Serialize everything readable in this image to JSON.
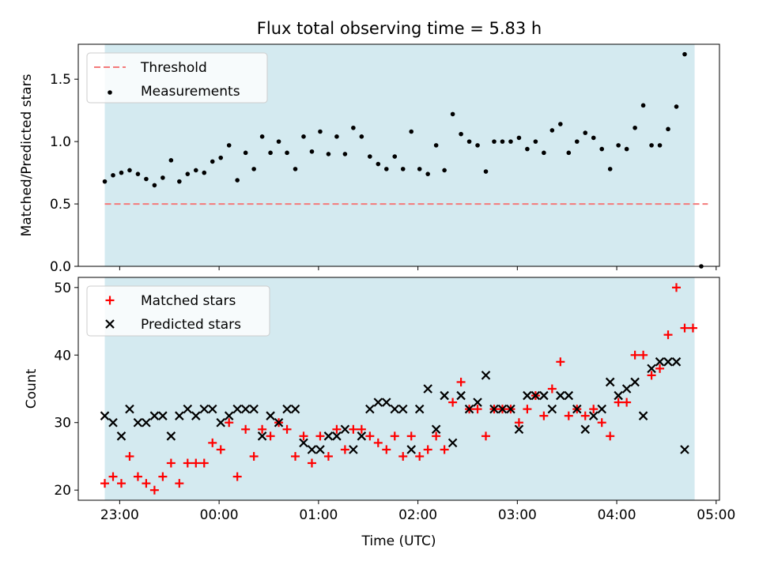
{
  "title": "Flux total observing time = 5.83 h",
  "colors": {
    "observing_band": "#d4eaf0",
    "threshold": "#f47a7a",
    "measurements": "#000000",
    "matched": "#ff0000",
    "predicted": "#000000"
  },
  "chart_data": [
    {
      "type": "scatter",
      "title": "Flux total observing time = 5.83 h",
      "xlabel": "",
      "ylabel": "Matched/Predicted stars",
      "xlim": [
        "22:35",
        "05:02"
      ],
      "ylim": [
        0,
        1.78
      ],
      "xticks": [
        "23:00",
        "00:00",
        "01:00",
        "02:00",
        "03:00",
        "04:00",
        "05:00"
      ],
      "yticks": [
        "0.0",
        "0.5",
        "1.0",
        "1.5"
      ],
      "legend_position": "upper-left",
      "observing_window": [
        "22:51",
        "04:47"
      ],
      "threshold": {
        "name": "Threshold",
        "y": 0.5,
        "x_range": [
          "22:51",
          "04:55"
        ]
      },
      "series": [
        {
          "name": "Measurements",
          "marker": "dot",
          "points": [
            [
              "22:51",
              0.68
            ],
            [
              "22:56",
              0.73
            ],
            [
              "22:61",
              0.75
            ],
            [
              "23:06",
              0.77
            ],
            [
              "23:11",
              0.74
            ],
            [
              "23:16",
              0.7
            ],
            [
              "23:21",
              0.65
            ],
            [
              "23:26",
              0.71
            ],
            [
              "23:31",
              0.85
            ],
            [
              "23:36",
              0.68
            ],
            [
              "23:41",
              0.74
            ],
            [
              "23:46",
              0.77
            ],
            [
              "23:51",
              0.75
            ],
            [
              "23:56",
              0.84
            ],
            [
              "00:01",
              0.87
            ],
            [
              "00:06",
              0.97
            ],
            [
              "00:11",
              0.69
            ],
            [
              "00:16",
              0.91
            ],
            [
              "00:21",
              0.78
            ],
            [
              "00:26",
              1.04
            ],
            [
              "00:31",
              0.91
            ],
            [
              "00:36",
              1.0
            ],
            [
              "00:41",
              0.91
            ],
            [
              "00:46",
              0.78
            ],
            [
              "00:51",
              1.04
            ],
            [
              "00:56",
              0.92
            ],
            [
              "01:01",
              1.08
            ],
            [
              "01:06",
              0.9
            ],
            [
              "01:11",
              1.04
            ],
            [
              "01:16",
              0.9
            ],
            [
              "01:21",
              1.11
            ],
            [
              "01:26",
              1.04
            ],
            [
              "01:31",
              0.88
            ],
            [
              "01:36",
              0.82
            ],
            [
              "01:41",
              0.78
            ],
            [
              "01:46",
              0.88
            ],
            [
              "01:51",
              0.78
            ],
            [
              "01:56",
              1.08
            ],
            [
              "02:01",
              0.78
            ],
            [
              "02:06",
              0.74
            ],
            [
              "02:11",
              0.97
            ],
            [
              "02:16",
              0.77
            ],
            [
              "02:21",
              1.22
            ],
            [
              "02:26",
              1.06
            ],
            [
              "02:31",
              1.0
            ],
            [
              "02:36",
              0.97
            ],
            [
              "02:41",
              0.76
            ],
            [
              "02:46",
              1.0
            ],
            [
              "02:51",
              1.0
            ],
            [
              "02:56",
              1.0
            ],
            [
              "03:01",
              1.03
            ],
            [
              "03:06",
              0.94
            ],
            [
              "03:11",
              1.0
            ],
            [
              "03:16",
              0.91
            ],
            [
              "03:21",
              1.09
            ],
            [
              "03:26",
              1.14
            ],
            [
              "03:31",
              0.91
            ],
            [
              "03:36",
              1.0
            ],
            [
              "03:41",
              1.07
            ],
            [
              "03:46",
              1.03
            ],
            [
              "03:51",
              0.94
            ],
            [
              "03:56",
              0.78
            ],
            [
              "04:01",
              0.97
            ],
            [
              "04:06",
              0.94
            ],
            [
              "04:11",
              1.11
            ],
            [
              "04:16",
              1.29
            ],
            [
              "04:21",
              0.97
            ],
            [
              "04:26",
              0.97
            ],
            [
              "04:31",
              1.1
            ],
            [
              "04:36",
              1.28
            ],
            [
              "04:41",
              1.7
            ],
            [
              "04:51",
              0.0
            ]
          ]
        }
      ]
    },
    {
      "type": "scatter",
      "xlabel": "Time (UTC)",
      "ylabel": "Count",
      "xlim": [
        "22:35",
        "05:02"
      ],
      "ylim": [
        18.5,
        51.5
      ],
      "xticks": [
        "23:00",
        "00:00",
        "01:00",
        "02:00",
        "03:00",
        "04:00",
        "05:00"
      ],
      "yticks": [
        "20",
        "30",
        "40",
        "50"
      ],
      "legend_position": "upper-left",
      "observing_window": [
        "22:51",
        "04:47"
      ],
      "series": [
        {
          "name": "Matched stars",
          "marker": "plus",
          "points": [
            [
              "22:51",
              21
            ],
            [
              "22:56",
              22
            ],
            [
              "23:01",
              21
            ],
            [
              "23:06",
              25
            ],
            [
              "23:11",
              22
            ],
            [
              "23:16",
              21
            ],
            [
              "23:21",
              20
            ],
            [
              "23:26",
              22
            ],
            [
              "23:31",
              24
            ],
            [
              "23:36",
              21
            ],
            [
              "23:41",
              24
            ],
            [
              "23:46",
              24
            ],
            [
              "23:51",
              24
            ],
            [
              "23:56",
              27
            ],
            [
              "00:01",
              26
            ],
            [
              "00:06",
              30
            ],
            [
              "00:11",
              22
            ],
            [
              "00:16",
              29
            ],
            [
              "00:21",
              25
            ],
            [
              "00:26",
              29
            ],
            [
              "00:31",
              28
            ],
            [
              "00:36",
              30
            ],
            [
              "00:41",
              29
            ],
            [
              "00:46",
              25
            ],
            [
              "00:51",
              28
            ],
            [
              "00:56",
              24
            ],
            [
              "01:01",
              28
            ],
            [
              "01:06",
              25
            ],
            [
              "01:11",
              29
            ],
            [
              "01:16",
              26
            ],
            [
              "01:21",
              29
            ],
            [
              "01:26",
              29
            ],
            [
              "01:31",
              28
            ],
            [
              "01:36",
              27
            ],
            [
              "01:41",
              26
            ],
            [
              "01:46",
              28
            ],
            [
              "01:51",
              25
            ],
            [
              "01:56",
              28
            ],
            [
              "02:01",
              25
            ],
            [
              "02:06",
              26
            ],
            [
              "02:11",
              28
            ],
            [
              "02:16",
              26
            ],
            [
              "02:21",
              33
            ],
            [
              "02:26",
              36
            ],
            [
              "02:31",
              32
            ],
            [
              "02:36",
              32
            ],
            [
              "02:41",
              28
            ],
            [
              "02:46",
              32
            ],
            [
              "02:51",
              32
            ],
            [
              "02:56",
              32
            ],
            [
              "03:01",
              30
            ],
            [
              "03:06",
              32
            ],
            [
              "03:11",
              34
            ],
            [
              "03:16",
              31
            ],
            [
              "03:21",
              35
            ],
            [
              "03:26",
              39
            ],
            [
              "03:31",
              31
            ],
            [
              "03:36",
              32
            ],
            [
              "03:41",
              31
            ],
            [
              "03:46",
              32
            ],
            [
              "03:51",
              30
            ],
            [
              "03:56",
              28
            ],
            [
              "04:01",
              33
            ],
            [
              "04:06",
              33
            ],
            [
              "04:11",
              40
            ],
            [
              "04:16",
              40
            ],
            [
              "04:21",
              37
            ],
            [
              "04:26",
              38
            ],
            [
              "04:31",
              43
            ],
            [
              "04:36",
              50
            ],
            [
              "04:41",
              44
            ],
            [
              "04:46",
              44
            ]
          ]
        },
        {
          "name": "Predicted stars",
          "marker": "x",
          "points": [
            [
              "22:51",
              31
            ],
            [
              "22:56",
              30
            ],
            [
              "23:01",
              28
            ],
            [
              "23:06",
              32
            ],
            [
              "23:11",
              30
            ],
            [
              "23:16",
              30
            ],
            [
              "23:21",
              31
            ],
            [
              "23:26",
              31
            ],
            [
              "23:31",
              28
            ],
            [
              "23:36",
              31
            ],
            [
              "23:41",
              32
            ],
            [
              "23:46",
              31
            ],
            [
              "23:51",
              32
            ],
            [
              "23:56",
              32
            ],
            [
              "00:01",
              30
            ],
            [
              "00:06",
              31
            ],
            [
              "00:11",
              32
            ],
            [
              "00:16",
              32
            ],
            [
              "00:21",
              32
            ],
            [
              "00:26",
              28
            ],
            [
              "00:31",
              31
            ],
            [
              "00:36",
              30
            ],
            [
              "00:41",
              32
            ],
            [
              "00:46",
              32
            ],
            [
              "00:51",
              27
            ],
            [
              "00:56",
              26
            ],
            [
              "01:01",
              26
            ],
            [
              "01:06",
              28
            ],
            [
              "01:11",
              28
            ],
            [
              "01:16",
              29
            ],
            [
              "01:21",
              26
            ],
            [
              "01:26",
              28
            ],
            [
              "01:31",
              32
            ],
            [
              "01:36",
              33
            ],
            [
              "01:41",
              33
            ],
            [
              "01:46",
              32
            ],
            [
              "01:51",
              32
            ],
            [
              "01:56",
              26
            ],
            [
              "02:01",
              32
            ],
            [
              "02:06",
              35
            ],
            [
              "02:11",
              29
            ],
            [
              "02:16",
              34
            ],
            [
              "02:21",
              27
            ],
            [
              "02:26",
              34
            ],
            [
              "02:31",
              32
            ],
            [
              "02:36",
              33
            ],
            [
              "02:41",
              37
            ],
            [
              "02:46",
              32
            ],
            [
              "02:51",
              32
            ],
            [
              "02:56",
              32
            ],
            [
              "03:01",
              29
            ],
            [
              "03:06",
              34
            ],
            [
              "03:11",
              34
            ],
            [
              "03:16",
              34
            ],
            [
              "03:21",
              32
            ],
            [
              "03:26",
              34
            ],
            [
              "03:31",
              34
            ],
            [
              "03:36",
              32
            ],
            [
              "03:41",
              29
            ],
            [
              "03:46",
              31
            ],
            [
              "03:51",
              32
            ],
            [
              "03:56",
              36
            ],
            [
              "04:01",
              34
            ],
            [
              "04:06",
              35
            ],
            [
              "04:11",
              36
            ],
            [
              "04:16",
              31
            ],
            [
              "04:21",
              38
            ],
            [
              "04:26",
              39
            ],
            [
              "04:31",
              39
            ],
            [
              "04:36",
              39
            ],
            [
              "04:41",
              26
            ]
          ]
        }
      ]
    }
  ]
}
